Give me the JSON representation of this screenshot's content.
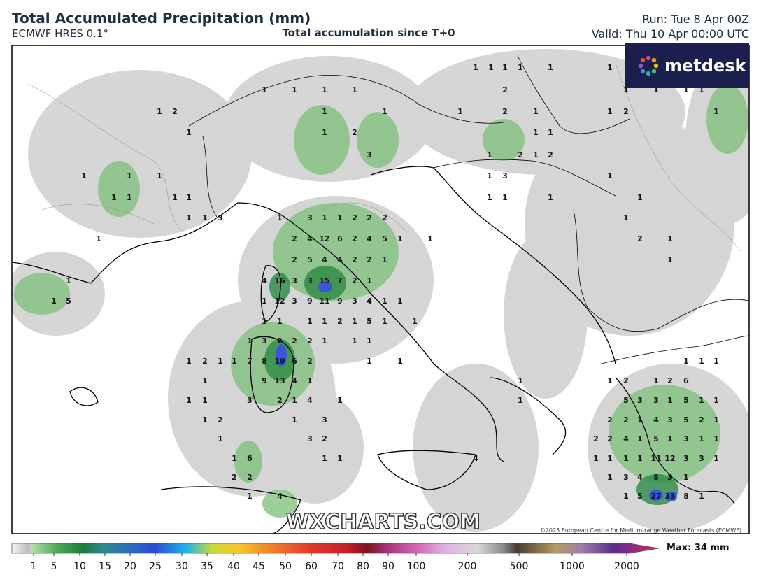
{
  "header": {
    "title": "Total Accumulated Precipitation (mm)",
    "model": "ECMWF HRES 0.1°",
    "subtitle": "Total accumulation since T+0",
    "run": "Run: Tue 8 Apr 00Z",
    "valid": "Valid: Thu 10 Apr 00:00 UTC"
  },
  "logo": "metdesk",
  "watermark": "WXCHARTS.COM",
  "copyright": "©2025 European Centre for Medium-range Weather Forecasts (ECMWF)",
  "precip_labels": [
    [
      1,
      1,
      1,
      1,
      1,
      1
    ],
    [
      1,
      1,
      1,
      1,
      2,
      1,
      1,
      1,
      1
    ],
    [
      1,
      2,
      1,
      1,
      1,
      2,
      1,
      1,
      2,
      1
    ],
    [
      1,
      1,
      2,
      1,
      1
    ],
    [
      3,
      1,
      2,
      1,
      2
    ],
    [
      1,
      1,
      1,
      1,
      3,
      1
    ],
    [
      1,
      1,
      1,
      1,
      1,
      1,
      1,
      1
    ],
    [
      1,
      1,
      3,
      1,
      3,
      1,
      1,
      2,
      2,
      2,
      1
    ],
    [
      1,
      2,
      4,
      12,
      6,
      2,
      4,
      5,
      1,
      1,
      2,
      1
    ],
    [
      2,
      5,
      4,
      4,
      2,
      2,
      1,
      1
    ],
    [
      1,
      4,
      16,
      3,
      3,
      15,
      7,
      2,
      1
    ],
    [
      1,
      5,
      1,
      12,
      3,
      9,
      11,
      9,
      3,
      4,
      1,
      1
    ],
    [
      1,
      1,
      1,
      1,
      2,
      1,
      5,
      1,
      1
    ],
    [
      1,
      3,
      2,
      2,
      2,
      1,
      1,
      1
    ],
    [
      1,
      2,
      1,
      1,
      7,
      8,
      19,
      6,
      2,
      1,
      1,
      1,
      1,
      1
    ],
    [
      1,
      9,
      13,
      4,
      1,
      1,
      1,
      2,
      1,
      2,
      6
    ],
    [
      1,
      1,
      3,
      2,
      1,
      4,
      1,
      1,
      5,
      3,
      3,
      1,
      5,
      1,
      1
    ],
    [
      1,
      2,
      1,
      3,
      2,
      2,
      1,
      4,
      3,
      5,
      2,
      1
    ],
    [
      1,
      3,
      2,
      2,
      2,
      4,
      1,
      5,
      1,
      3,
      1,
      1
    ],
    [
      1,
      6,
      1,
      1,
      4,
      1,
      1,
      1,
      1,
      11,
      12,
      3,
      3,
      1
    ],
    [
      2,
      2,
      1,
      3,
      4,
      8,
      3,
      1
    ],
    [
      1,
      4,
      1,
      5,
      27,
      33,
      8,
      1
    ]
  ],
  "colorbar": {
    "ticks": [
      1,
      5,
      10,
      15,
      20,
      25,
      30,
      35,
      40,
      45,
      50,
      60,
      70,
      80,
      90,
      100,
      200,
      500,
      1000,
      2000
    ],
    "max": "Max: 34 mm"
  }
}
